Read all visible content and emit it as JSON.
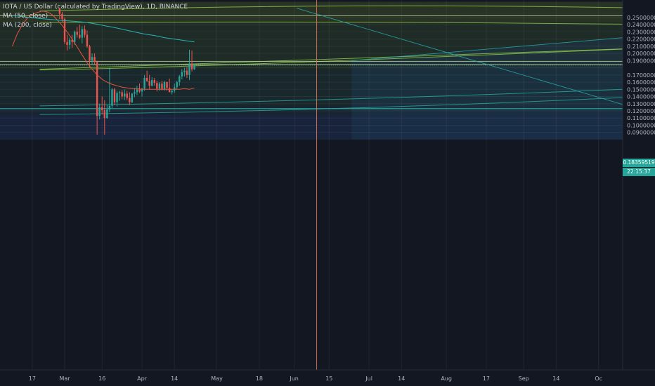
{
  "legend": {
    "title": "IOTA / US Dollar (calculated by TradingView), 1D, BINANCE",
    "ma50": "MA (50, close)",
    "ma200": "MA (200, close)"
  },
  "last_price": "0.18359519",
  "countdown": "22:15:37",
  "colors": {
    "background": "#131722",
    "up": "#26a69a",
    "down": "#ef5350",
    "ma50": "#e5533f",
    "ma200": "#26b4b4",
    "arc": "#8bc34a",
    "hline": "#c5e1a5",
    "vline": "#e57350",
    "fan": "#26b4b4"
  },
  "chart_data": {
    "type": "candlestick",
    "symbol": "IOTA / US Dollar",
    "interval": "1D",
    "exchange": "BINANCE",
    "ylim": [
      0.087,
      0.263
    ],
    "y_ticks": [
      "0.25000000",
      "0.24000000",
      "0.23000000",
      "0.22000000",
      "0.21000000",
      "0.20000000",
      "0.19000000",
      "0.17000000",
      "0.16000000",
      "0.15000000",
      "0.14000000",
      "0.13000000",
      "0.12000000",
      "0.11000000",
      "0.10000000",
      "0.09000000"
    ],
    "x_ticks": [
      {
        "label": "17",
        "day": -13
      },
      {
        "label": "Mar",
        "day": 0
      },
      {
        "label": "16",
        "day": 15
      },
      {
        "label": "Apr",
        "day": 31
      },
      {
        "label": "14",
        "day": 44
      },
      {
        "label": "May",
        "day": 61
      },
      {
        "label": "18",
        "day": 78
      },
      {
        "label": "Jun",
        "day": 92
      },
      {
        "label": "15",
        "day": 106
      },
      {
        "label": "Jul",
        "day": 122
      },
      {
        "label": "14",
        "day": 135
      },
      {
        "label": "Aug",
        "day": 153
      },
      {
        "label": "17",
        "day": 169
      },
      {
        "label": "Sep",
        "day": 184
      },
      {
        "label": "14",
        "day": 197
      },
      {
        "label": "Oc",
        "day": 214
      }
    ],
    "candles": [
      {
        "d": -2,
        "o": 0.262,
        "h": 0.263,
        "l": 0.248,
        "c": 0.255
      },
      {
        "d": -1,
        "o": 0.255,
        "h": 0.258,
        "l": 0.244,
        "c": 0.248
      },
      {
        "d": 0,
        "o": 0.248,
        "h": 0.25,
        "l": 0.213,
        "c": 0.216
      },
      {
        "d": 1,
        "o": 0.216,
        "h": 0.226,
        "l": 0.204,
        "c": 0.212
      },
      {
        "d": 2,
        "o": 0.212,
        "h": 0.222,
        "l": 0.206,
        "c": 0.219
      },
      {
        "d": 3,
        "o": 0.219,
        "h": 0.226,
        "l": 0.208,
        "c": 0.216
      },
      {
        "d": 4,
        "o": 0.216,
        "h": 0.232,
        "l": 0.212,
        "c": 0.23
      },
      {
        "d": 5,
        "o": 0.23,
        "h": 0.237,
        "l": 0.222,
        "c": 0.226
      },
      {
        "d": 6,
        "o": 0.226,
        "h": 0.24,
        "l": 0.22,
        "c": 0.222
      },
      {
        "d": 7,
        "o": 0.222,
        "h": 0.238,
        "l": 0.214,
        "c": 0.234
      },
      {
        "d": 8,
        "o": 0.234,
        "h": 0.239,
        "l": 0.222,
        "c": 0.226
      },
      {
        "d": 9,
        "o": 0.226,
        "h": 0.232,
        "l": 0.208,
        "c": 0.21
      },
      {
        "d": 10,
        "o": 0.21,
        "h": 0.212,
        "l": 0.18,
        "c": 0.19
      },
      {
        "d": 11,
        "o": 0.19,
        "h": 0.2,
        "l": 0.185,
        "c": 0.195
      },
      {
        "d": 12,
        "o": 0.195,
        "h": 0.2,
        "l": 0.185,
        "c": 0.188
      },
      {
        "d": 13,
        "o": 0.188,
        "h": 0.19,
        "l": 0.087,
        "c": 0.113
      },
      {
        "d": 14,
        "o": 0.113,
        "h": 0.13,
        "l": 0.108,
        "c": 0.125
      },
      {
        "d": 15,
        "o": 0.125,
        "h": 0.14,
        "l": 0.115,
        "c": 0.121
      },
      {
        "d": 16,
        "o": 0.121,
        "h": 0.135,
        "l": 0.087,
        "c": 0.11
      },
      {
        "d": 17,
        "o": 0.11,
        "h": 0.128,
        "l": 0.109,
        "c": 0.122
      },
      {
        "d": 18,
        "o": 0.122,
        "h": 0.18,
        "l": 0.118,
        "c": 0.127
      },
      {
        "d": 19,
        "o": 0.127,
        "h": 0.152,
        "l": 0.124,
        "c": 0.15
      },
      {
        "d": 20,
        "o": 0.15,
        "h": 0.152,
        "l": 0.128,
        "c": 0.132
      },
      {
        "d": 21,
        "o": 0.132,
        "h": 0.148,
        "l": 0.126,
        "c": 0.145
      },
      {
        "d": 22,
        "o": 0.145,
        "h": 0.148,
        "l": 0.134,
        "c": 0.146
      },
      {
        "d": 23,
        "o": 0.146,
        "h": 0.149,
        "l": 0.136,
        "c": 0.14
      },
      {
        "d": 24,
        "o": 0.14,
        "h": 0.15,
        "l": 0.135,
        "c": 0.144
      },
      {
        "d": 25,
        "o": 0.144,
        "h": 0.148,
        "l": 0.135,
        "c": 0.138
      },
      {
        "d": 26,
        "o": 0.138,
        "h": 0.146,
        "l": 0.128,
        "c": 0.132
      },
      {
        "d": 27,
        "o": 0.132,
        "h": 0.145,
        "l": 0.131,
        "c": 0.144
      },
      {
        "d": 28,
        "o": 0.144,
        "h": 0.152,
        "l": 0.139,
        "c": 0.146
      },
      {
        "d": 29,
        "o": 0.146,
        "h": 0.155,
        "l": 0.142,
        "c": 0.15
      },
      {
        "d": 30,
        "o": 0.15,
        "h": 0.158,
        "l": 0.145,
        "c": 0.147
      },
      {
        "d": 31,
        "o": 0.147,
        "h": 0.152,
        "l": 0.14,
        "c": 0.151
      },
      {
        "d": 32,
        "o": 0.151,
        "h": 0.17,
        "l": 0.148,
        "c": 0.166
      },
      {
        "d": 33,
        "o": 0.166,
        "h": 0.176,
        "l": 0.16,
        "c": 0.162
      },
      {
        "d": 34,
        "o": 0.162,
        "h": 0.17,
        "l": 0.15,
        "c": 0.155
      },
      {
        "d": 35,
        "o": 0.155,
        "h": 0.167,
        "l": 0.154,
        "c": 0.163
      },
      {
        "d": 36,
        "o": 0.163,
        "h": 0.166,
        "l": 0.155,
        "c": 0.159
      },
      {
        "d": 37,
        "o": 0.159,
        "h": 0.162,
        "l": 0.147,
        "c": 0.151
      },
      {
        "d": 38,
        "o": 0.151,
        "h": 0.16,
        "l": 0.148,
        "c": 0.158
      },
      {
        "d": 39,
        "o": 0.158,
        "h": 0.162,
        "l": 0.148,
        "c": 0.15
      },
      {
        "d": 40,
        "o": 0.15,
        "h": 0.162,
        "l": 0.148,
        "c": 0.16
      },
      {
        "d": 41,
        "o": 0.16,
        "h": 0.161,
        "l": 0.148,
        "c": 0.152
      },
      {
        "d": 42,
        "o": 0.152,
        "h": 0.165,
        "l": 0.147,
        "c": 0.146
      },
      {
        "d": 43,
        "o": 0.146,
        "h": 0.15,
        "l": 0.143,
        "c": 0.148
      },
      {
        "d": 44,
        "o": 0.148,
        "h": 0.158,
        "l": 0.145,
        "c": 0.153
      },
      {
        "d": 45,
        "o": 0.153,
        "h": 0.162,
        "l": 0.15,
        "c": 0.16
      },
      {
        "d": 46,
        "o": 0.16,
        "h": 0.17,
        "l": 0.155,
        "c": 0.168
      },
      {
        "d": 47,
        "o": 0.168,
        "h": 0.178,
        "l": 0.164,
        "c": 0.174
      },
      {
        "d": 48,
        "o": 0.174,
        "h": 0.18,
        "l": 0.168,
        "c": 0.176
      },
      {
        "d": 49,
        "o": 0.176,
        "h": 0.181,
        "l": 0.166,
        "c": 0.17
      },
      {
        "d": 50,
        "o": 0.17,
        "h": 0.205,
        "l": 0.163,
        "c": 0.186
      },
      {
        "d": 51,
        "o": 0.186,
        "h": 0.204,
        "l": 0.175,
        "c": 0.178
      },
      {
        "d": 52,
        "o": 0.178,
        "h": 0.186,
        "l": 0.177,
        "c": 0.1836
      }
    ],
    "ma50": [
      [
        -21,
        0.21
      ],
      [
        -19,
        0.227
      ],
      [
        -17,
        0.24
      ],
      [
        -15,
        0.249
      ],
      [
        -13,
        0.254
      ],
      [
        -11,
        0.257
      ],
      [
        -9,
        0.259
      ],
      [
        -7,
        0.258
      ],
      [
        -5,
        0.254
      ],
      [
        -3,
        0.247
      ],
      [
        -1,
        0.239
      ],
      [
        1,
        0.23
      ],
      [
        3,
        0.22
      ],
      [
        5,
        0.209
      ],
      [
        7,
        0.198
      ],
      [
        9,
        0.187
      ],
      [
        11,
        0.178
      ],
      [
        13,
        0.17
      ],
      [
        15,
        0.164
      ],
      [
        17,
        0.16
      ],
      [
        19,
        0.157
      ],
      [
        21,
        0.155
      ],
      [
        23,
        0.153
      ],
      [
        25,
        0.152
      ],
      [
        27,
        0.151
      ],
      [
        29,
        0.151
      ],
      [
        31,
        0.15
      ],
      [
        33,
        0.15
      ],
      [
        35,
        0.15
      ],
      [
        37,
        0.15
      ],
      [
        40,
        0.15
      ],
      [
        43,
        0.15
      ],
      [
        46,
        0.15
      ],
      [
        48,
        0.151
      ],
      [
        50,
        0.15
      ],
      [
        52,
        0.152
      ]
    ],
    "ma200": [
      [
        -21,
        0.253
      ],
      [
        -16,
        0.251
      ],
      [
        -11,
        0.249
      ],
      [
        -6,
        0.2475
      ],
      [
        -1,
        0.246
      ],
      [
        3,
        0.245
      ],
      [
        8,
        0.2435
      ],
      [
        11,
        0.242
      ],
      [
        14,
        0.24
      ],
      [
        17,
        0.238
      ],
      [
        20,
        0.236
      ],
      [
        24,
        0.233
      ],
      [
        28,
        0.23
      ],
      [
        32,
        0.227
      ],
      [
        36,
        0.225
      ],
      [
        40,
        0.222
      ],
      [
        44,
        0.22
      ],
      [
        48,
        0.218
      ],
      [
        52,
        0.216
      ]
    ]
  }
}
